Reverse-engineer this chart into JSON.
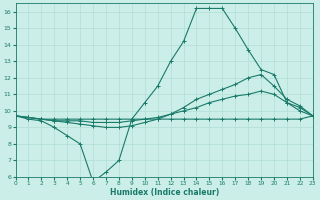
{
  "xlabel": "Humidex (Indice chaleur)",
  "background_color": "#cceee8",
  "grid_color": "#b0ddd5",
  "line_color": "#1a7a6a",
  "xlim": [
    0,
    23
  ],
  "ylim": [
    6,
    16.5
  ],
  "xticks": [
    0,
    1,
    2,
    3,
    4,
    5,
    6,
    7,
    8,
    9,
    10,
    11,
    12,
    13,
    14,
    15,
    16,
    17,
    18,
    19,
    20,
    21,
    22,
    23
  ],
  "yticks": [
    6,
    7,
    8,
    9,
    10,
    11,
    12,
    13,
    14,
    15,
    16
  ],
  "line_flat_x": [
    0,
    1,
    2,
    3,
    4,
    5,
    6,
    7,
    8,
    9,
    10,
    11,
    12,
    13,
    14,
    15,
    16,
    17,
    18,
    19,
    20,
    21,
    22,
    23
  ],
  "line_flat_y": [
    9.7,
    9.6,
    9.5,
    9.5,
    9.5,
    9.5,
    9.5,
    9.5,
    9.5,
    9.5,
    9.5,
    9.5,
    9.5,
    9.5,
    9.5,
    9.5,
    9.5,
    9.5,
    9.5,
    9.5,
    9.5,
    9.5,
    9.5,
    9.7
  ],
  "line_slow_x": [
    0,
    1,
    2,
    3,
    4,
    5,
    6,
    7,
    8,
    9,
    10,
    11,
    12,
    13,
    14,
    15,
    16,
    17,
    18,
    19,
    20,
    21,
    22,
    23
  ],
  "line_slow_y": [
    9.7,
    9.6,
    9.5,
    9.4,
    9.4,
    9.4,
    9.3,
    9.3,
    9.3,
    9.4,
    9.5,
    9.6,
    9.8,
    10.0,
    10.2,
    10.5,
    10.7,
    10.9,
    11.0,
    11.2,
    11.0,
    10.5,
    10.2,
    9.7
  ],
  "line_med_x": [
    0,
    1,
    2,
    3,
    4,
    5,
    6,
    7,
    8,
    9,
    10,
    11,
    12,
    13,
    14,
    15,
    16,
    17,
    18,
    19,
    20,
    21,
    22,
    23
  ],
  "line_med_y": [
    9.7,
    9.6,
    9.5,
    9.4,
    9.3,
    9.2,
    9.1,
    9.0,
    9.0,
    9.1,
    9.3,
    9.5,
    9.8,
    10.2,
    10.7,
    11.0,
    11.3,
    11.6,
    12.0,
    12.2,
    11.5,
    10.7,
    10.3,
    9.7
  ],
  "line_peak_x": [
    0,
    1,
    2,
    3,
    4,
    5,
    6,
    7,
    8,
    9,
    10,
    11,
    12,
    13,
    14,
    15,
    16,
    17,
    18,
    19,
    20,
    21,
    22,
    23
  ],
  "line_peak_y": [
    9.7,
    9.5,
    9.4,
    9.0,
    8.5,
    8.0,
    5.7,
    6.3,
    7.0,
    9.5,
    10.5,
    11.5,
    13.0,
    14.2,
    16.2,
    16.2,
    16.2,
    15.0,
    13.7,
    12.5,
    12.2,
    10.5,
    10.0,
    9.7
  ]
}
